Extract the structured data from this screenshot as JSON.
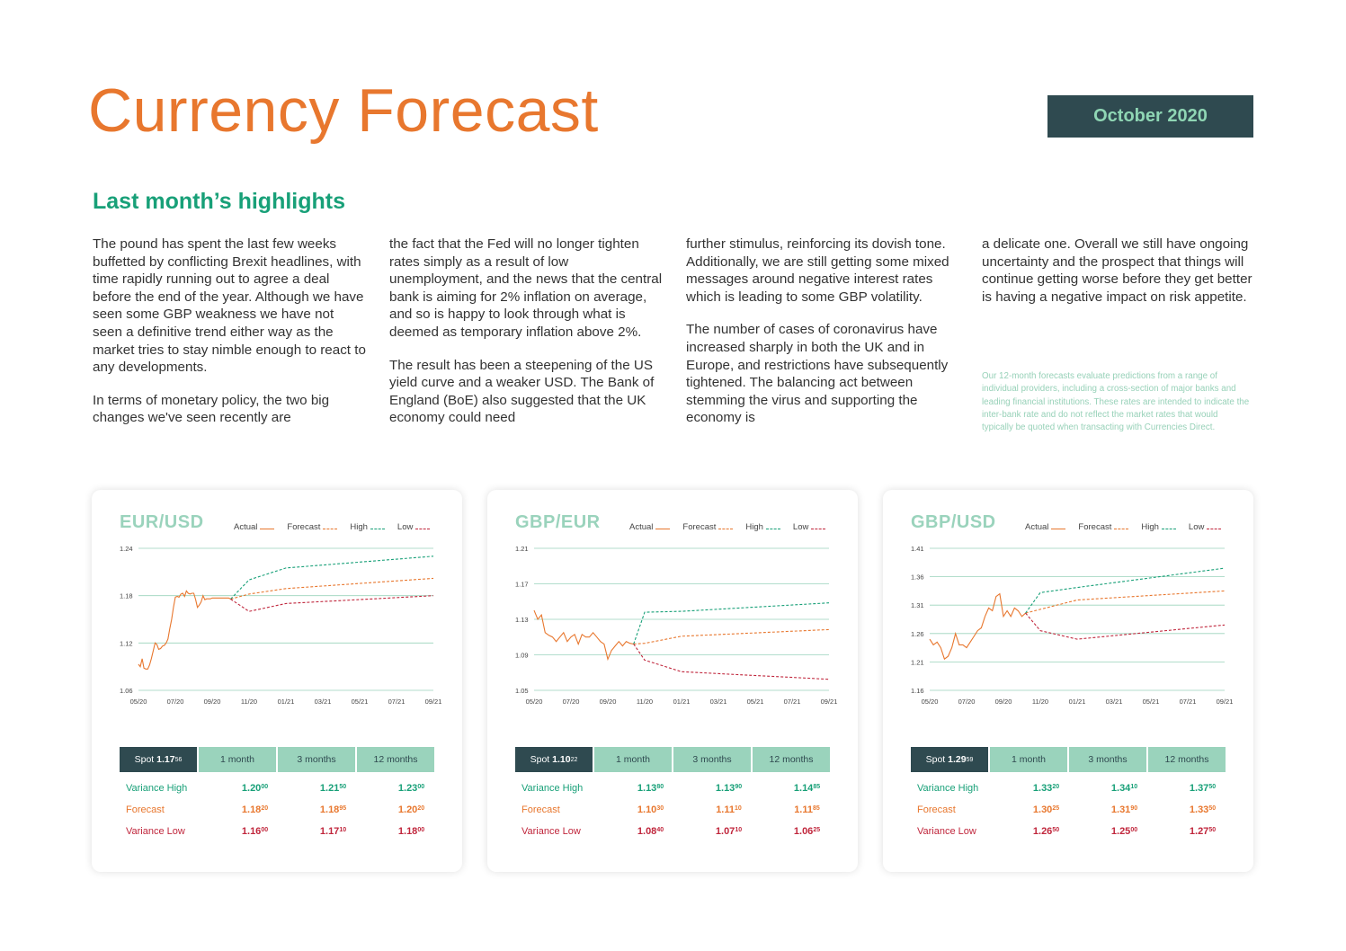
{
  "header": {
    "title": "Currency Forecast",
    "date": "October 2020"
  },
  "highlights": {
    "heading": "Last month’s highlights",
    "columns": [
      [
        "The pound has spent the last few weeks buffetted by conflicting Brexit headlines, with time rapidly running out to agree a deal before the end of the year. Although we have seen some GBP weakness we have not seen a definitive trend either way as the market tries to stay nimble enough to react to any developments.",
        "In terms of monetary policy, the two big changes we've seen recently are"
      ],
      [
        "the fact that the Fed will no longer tighten rates simply as a result of low unemployment, and the news that the central bank is aiming for 2% inflation on average, and so is happy to look through what is deemed as temporary inflation above 2%.",
        "The result has been a steepening of the US yield curve and a weaker USD. The Bank of England (BoE) also suggested that the UK economy could need"
      ],
      [
        "further stimulus, reinforcing its dovish tone. Additionally, we are still getting some mixed messages around negative interest rates which is leading to some GBP volatility.",
        "The number of cases of coronavirus have increased sharply in both the UK and in Europe, and restrictions have subsequently tightened. The balancing act between stemming the virus and supporting the economy is"
      ],
      [
        "a delicate one. Overall we still have ongoing uncertainty and the prospect that things will continue getting worse before they get better is having a negative impact on risk appetite."
      ]
    ],
    "disclaimer": "Our 12-month forecasts evaluate predictions from a range of individual providers, including a cross-section of major banks and leading financial institutions. These rates are intended to indicate the inter-bank rate and do not reflect the market rates that would typically be quoted when transacting with Currencies Direct."
  },
  "colors": {
    "actual": "#e8772e",
    "forecast": "#e8772e",
    "high": "#18a078",
    "low": "#c0263c",
    "grid": "#9ad3bc"
  },
  "legend_labels": {
    "actual": "Actual",
    "forecast": "Forecast",
    "high": "High",
    "low": "Low"
  },
  "table_headers": {
    "spot": "Spot",
    "m1": "1 month",
    "m3": "3 months",
    "m12": "12 months"
  },
  "row_labels": {
    "high": "Variance High",
    "forecast": "Forecast",
    "low": "Variance Low"
  },
  "cards": [
    {
      "pair": "EUR/USD",
      "spot_main": "1.17",
      "spot_sup": "56",
      "rows": {
        "high": [
          [
            "1.20",
            "00"
          ],
          [
            "1.21",
            "50"
          ],
          [
            "1.23",
            "00"
          ]
        ],
        "forecast": [
          [
            "1.18",
            "20"
          ],
          [
            "1.18",
            "95"
          ],
          [
            "1.20",
            "20"
          ]
        ],
        "low": [
          [
            "1.16",
            "00"
          ],
          [
            "1.17",
            "10"
          ],
          [
            "1.18",
            "00"
          ]
        ]
      }
    },
    {
      "pair": "GBP/EUR",
      "spot_main": "1.10",
      "spot_sup": "22",
      "rows": {
        "high": [
          [
            "1.13",
            "80"
          ],
          [
            "1.13",
            "90"
          ],
          [
            "1.14",
            "85"
          ]
        ],
        "forecast": [
          [
            "1.10",
            "30"
          ],
          [
            "1.11",
            "10"
          ],
          [
            "1.11",
            "85"
          ]
        ],
        "low": [
          [
            "1.08",
            "40"
          ],
          [
            "1.07",
            "10"
          ],
          [
            "1.06",
            "25"
          ]
        ]
      }
    },
    {
      "pair": "GBP/USD",
      "spot_main": "1.29",
      "spot_sup": "59",
      "rows": {
        "high": [
          [
            "1.33",
            "20"
          ],
          [
            "1.34",
            "10"
          ],
          [
            "1.37",
            "50"
          ]
        ],
        "forecast": [
          [
            "1.30",
            "25"
          ],
          [
            "1.31",
            "90"
          ],
          [
            "1.33",
            "50"
          ]
        ],
        "low": [
          [
            "1.26",
            "50"
          ],
          [
            "1.25",
            "00"
          ],
          [
            "1.27",
            "50"
          ]
        ]
      }
    }
  ],
  "chart_data": [
    {
      "type": "line",
      "pair": "EUR/USD",
      "x_ticks": [
        "05/20",
        "07/20",
        "09/20",
        "11/20",
        "01/21",
        "03/21",
        "05/21",
        "07/21",
        "09/21"
      ],
      "y_ticks": [
        "1.24",
        "1.18",
        "1.12",
        "1.06"
      ],
      "ylim": [
        1.06,
        1.24
      ],
      "grid": true,
      "legend": "top",
      "series": [
        {
          "name": "Actual",
          "style": "solid",
          "x": [
            0.0,
            0.05,
            0.1,
            0.15,
            0.2,
            0.25,
            0.3,
            0.35,
            0.4,
            0.45,
            0.5,
            0.55,
            0.6,
            0.65,
            0.7,
            0.75,
            0.8,
            0.85,
            0.9,
            0.95,
            1.0,
            1.05,
            1.1,
            1.15,
            1.2,
            1.25,
            1.3,
            1.35,
            1.4,
            1.45,
            1.5,
            1.55,
            1.6,
            1.65,
            1.7,
            1.75,
            1.8,
            1.85,
            1.9,
            1.95,
            2.0,
            2.05,
            2.1,
            2.15,
            2.2,
            2.25,
            2.3,
            2.35,
            2.4,
            2.45,
            2.5
          ],
          "y": [
            1.093,
            1.09,
            1.1,
            1.088,
            1.087,
            1.087,
            1.092,
            1.1,
            1.11,
            1.12,
            1.118,
            1.112,
            1.113,
            1.116,
            1.117,
            1.12,
            1.125,
            1.138,
            1.15,
            1.165,
            1.178,
            1.179,
            1.178,
            1.182,
            1.183,
            1.179,
            1.186,
            1.183,
            1.182,
            1.183,
            1.183,
            1.175,
            1.165,
            1.168,
            1.172,
            1.18,
            1.175,
            1.176,
            1.176,
            1.176,
            1.177,
            1.177,
            1.177,
            1.177,
            1.177,
            1.177,
            1.177,
            1.177,
            1.177,
            1.177,
            1.1756
          ]
        },
        {
          "name": "Forecast",
          "style": "dashed",
          "x": [
            2.5,
            3.0,
            4.0,
            8.0
          ],
          "y": [
            1.1756,
            1.182,
            1.189,
            1.202
          ]
        },
        {
          "name": "High",
          "style": "dashed",
          "x": [
            2.5,
            3.0,
            4.0,
            8.0
          ],
          "y": [
            1.1756,
            1.2,
            1.215,
            1.23
          ]
        },
        {
          "name": "Low",
          "style": "dashed",
          "x": [
            2.5,
            3.0,
            4.0,
            8.0
          ],
          "y": [
            1.1756,
            1.16,
            1.17,
            1.18
          ]
        }
      ]
    },
    {
      "type": "line",
      "pair": "GBP/EUR",
      "x_ticks": [
        "05/20",
        "07/20",
        "09/20",
        "11/20",
        "01/21",
        "03/21",
        "05/21",
        "07/21",
        "09/21"
      ],
      "y_ticks": [
        "1.21",
        "1.17",
        "1.13",
        "1.09",
        "1.05"
      ],
      "ylim": [
        1.05,
        1.21
      ],
      "grid": true,
      "legend": "top",
      "series": [
        {
          "name": "Actual",
          "style": "solid",
          "x": [
            0.0,
            0.1,
            0.2,
            0.3,
            0.4,
            0.5,
            0.6,
            0.7,
            0.8,
            0.9,
            1.0,
            1.1,
            1.2,
            1.3,
            1.4,
            1.5,
            1.6,
            1.7,
            1.8,
            1.9,
            2.0,
            2.1,
            2.2,
            2.3,
            2.4,
            2.5,
            2.6,
            2.7
          ],
          "y": [
            1.14,
            1.13,
            1.135,
            1.115,
            1.112,
            1.11,
            1.105,
            1.11,
            1.115,
            1.105,
            1.11,
            1.113,
            1.102,
            1.113,
            1.11,
            1.11,
            1.115,
            1.11,
            1.105,
            1.102,
            1.085,
            1.095,
            1.1,
            1.105,
            1.1,
            1.105,
            1.103,
            1.1022
          ]
        },
        {
          "name": "Forecast",
          "style": "dashed",
          "x": [
            2.7,
            3.0,
            4.0,
            8.0
          ],
          "y": [
            1.1022,
            1.103,
            1.111,
            1.1185
          ]
        },
        {
          "name": "High",
          "style": "dashed",
          "x": [
            2.7,
            3.0,
            4.0,
            8.0
          ],
          "y": [
            1.1022,
            1.138,
            1.139,
            1.1485
          ]
        },
        {
          "name": "Low",
          "style": "dashed",
          "x": [
            2.7,
            3.0,
            4.0,
            8.0
          ],
          "y": [
            1.1022,
            1.084,
            1.071,
            1.0625
          ]
        }
      ]
    },
    {
      "type": "line",
      "pair": "GBP/USD",
      "x_ticks": [
        "05/20",
        "07/20",
        "09/20",
        "11/20",
        "01/21",
        "03/21",
        "05/21",
        "07/21",
        "09/21"
      ],
      "y_ticks": [
        "1.41",
        "1.36",
        "1.31",
        "1.26",
        "1.21",
        "1.16"
      ],
      "ylim": [
        1.16,
        1.41
      ],
      "grid": true,
      "legend": "top",
      "series": [
        {
          "name": "Actual",
          "style": "solid",
          "x": [
            0.0,
            0.1,
            0.2,
            0.3,
            0.4,
            0.5,
            0.6,
            0.7,
            0.8,
            0.9,
            1.0,
            1.1,
            1.2,
            1.3,
            1.4,
            1.5,
            1.6,
            1.7,
            1.8,
            1.9,
            2.0,
            2.1,
            2.2,
            2.3,
            2.4,
            2.5,
            2.6
          ],
          "y": [
            1.25,
            1.24,
            1.245,
            1.235,
            1.215,
            1.22,
            1.235,
            1.26,
            1.24,
            1.24,
            1.235,
            1.245,
            1.255,
            1.265,
            1.27,
            1.29,
            1.305,
            1.3,
            1.325,
            1.33,
            1.29,
            1.3,
            1.29,
            1.305,
            1.3,
            1.29,
            1.2959
          ]
        },
        {
          "name": "Forecast",
          "style": "dashed",
          "x": [
            2.6,
            3.0,
            4.0,
            8.0
          ],
          "y": [
            1.2959,
            1.3025,
            1.319,
            1.335
          ]
        },
        {
          "name": "High",
          "style": "dashed",
          "x": [
            2.6,
            3.0,
            4.0,
            8.0
          ],
          "y": [
            1.2959,
            1.332,
            1.341,
            1.375
          ]
        },
        {
          "name": "Low",
          "style": "dashed",
          "x": [
            2.6,
            3.0,
            4.0,
            8.0
          ],
          "y": [
            1.2959,
            1.265,
            1.25,
            1.275
          ]
        }
      ]
    }
  ]
}
